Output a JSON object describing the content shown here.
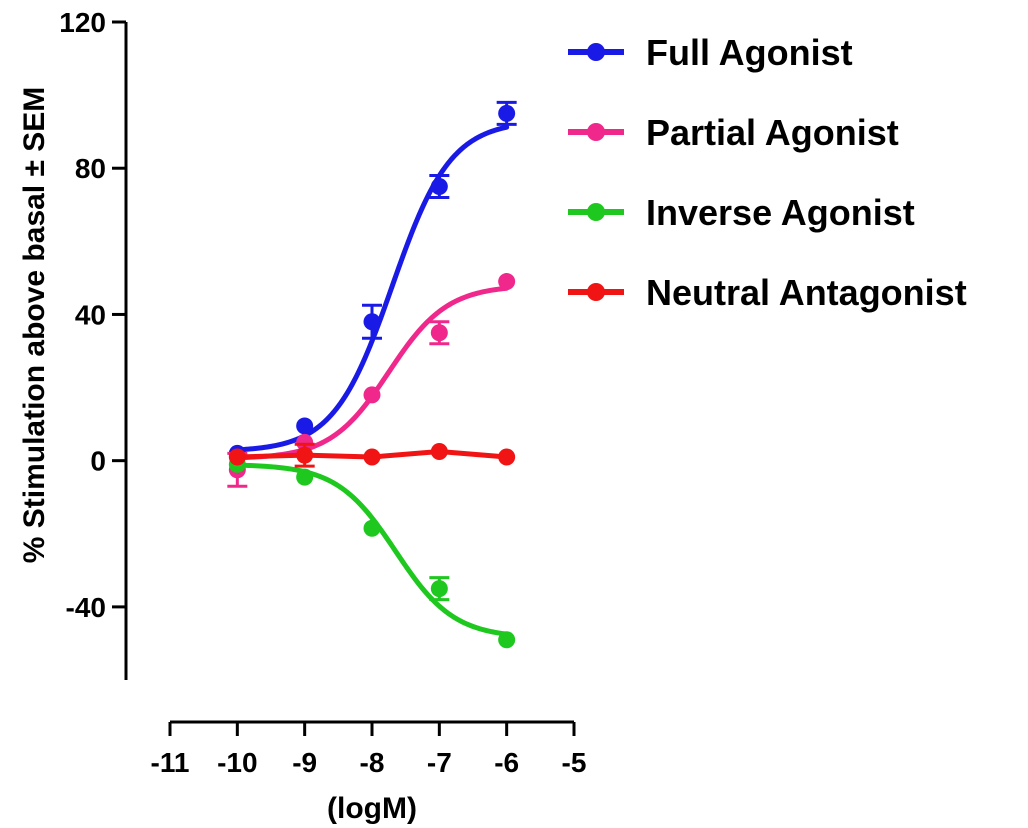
{
  "chart_data": {
    "type": "line",
    "title": "",
    "xlabel": "(logM)",
    "ylabel": "% Stimulation above basal ± SEM",
    "xlim": [
      -11,
      -5
    ],
    "ylim": [
      -60,
      120
    ],
    "xticks": [
      -11,
      -10,
      -9,
      -8,
      -7,
      -6,
      -5
    ],
    "xtick_labels": [
      "-11",
      "-10",
      "-9",
      "-8",
      "-7",
      "-6",
      "-5"
    ],
    "yticks": [
      120,
      80,
      40,
      0,
      -40
    ],
    "ytick_labels": [
      "120",
      "80",
      "40",
      "0",
      "-40"
    ],
    "grid": false,
    "legend_position": "top-right",
    "series": [
      {
        "name": "Full Agonist",
        "color": "#1a1ae6",
        "x": [
          -10,
          -9,
          -8,
          -7,
          -6
        ],
        "y": [
          2,
          9.5,
          38,
          75,
          95
        ],
        "err": [
          0,
          0,
          4.5,
          3,
          3
        ],
        "fit": {
          "bottom": 2.5,
          "top": 93,
          "logEC50": -7.7,
          "hill": 1.0
        }
      },
      {
        "name": "Partial Agonist",
        "color": "#f0288c",
        "x": [
          -10,
          -9,
          -8,
          -7,
          -6
        ],
        "y": [
          -2.5,
          5,
          18,
          35,
          49
        ],
        "err": [
          4.5,
          0,
          0,
          3,
          0
        ],
        "fit": {
          "bottom": 0.5,
          "top": 48,
          "logEC50": -7.75,
          "hill": 1.0
        }
      },
      {
        "name": "Inverse Agonist",
        "color": "#1ec81e",
        "x": [
          -10,
          -9,
          -8,
          -7,
          -6
        ],
        "y": [
          -1,
          -4.5,
          -18.5,
          -35,
          -49
        ],
        "err": [
          0,
          0,
          0,
          3,
          0
        ],
        "fit": {
          "bottom": -1,
          "top": -48.5,
          "logEC50": -7.65,
          "hill": 1.0
        }
      },
      {
        "name": "Neutral Antagonist",
        "color": "#f01414",
        "x": [
          -10,
          -9,
          -8,
          -7,
          -6
        ],
        "y": [
          1,
          1.5,
          1,
          2.5,
          1
        ],
        "err": [
          0,
          3,
          0,
          0,
          0
        ],
        "fit": null
      }
    ]
  }
}
